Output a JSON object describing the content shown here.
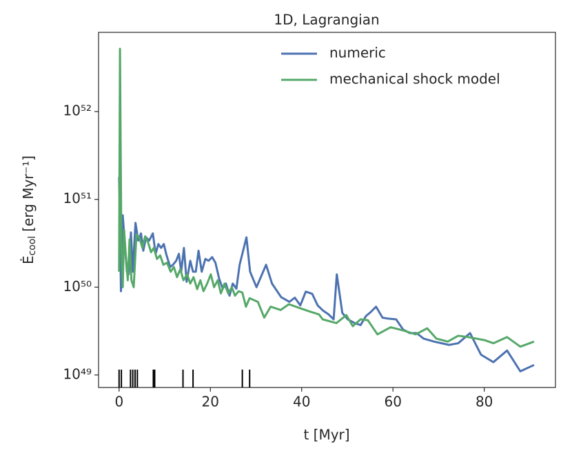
{
  "chart_data": {
    "type": "line",
    "title": "1D, Lagrangian",
    "xlabel": "t [Myr]",
    "ylabel": {
      "symbol": "Ė",
      "sub": "cool",
      "unit": "[erg Myr⁻¹]"
    },
    "xlim": [
      -4.5,
      95.6
    ],
    "xticks": [
      0,
      20,
      40,
      60,
      80
    ],
    "ylim": [
      7.2e+48,
      8e+52
    ],
    "yscale": "log",
    "yticks": [
      {
        "value": 1e+49,
        "label": "10⁴⁹"
      },
      {
        "value": 1e+50,
        "label": "10⁵⁰"
      },
      {
        "value": 1e+51,
        "label": "10⁵¹"
      },
      {
        "value": 1e+52,
        "label": "10⁵²"
      }
    ],
    "legend": "upper right",
    "series": [
      {
        "name": "numeric",
        "color": "#4c72b0",
        "x": [
          0,
          0.15,
          0.4,
          0.8,
          1.2,
          1.7,
          2.1,
          2.6,
          3.0,
          3.6,
          4.2,
          4.8,
          5.3,
          5.9,
          6.6,
          7.4,
          8.0,
          8.6,
          9.2,
          9.8,
          10.4,
          11.2,
          11.8,
          12.5,
          13.1,
          13.6,
          14.2,
          14.8,
          15.6,
          16.2,
          16.8,
          17.4,
          18.1,
          18.9,
          19.6,
          20.4,
          21.1,
          21.9,
          22.7,
          23.4,
          24.2,
          24.9,
          25.7,
          26.4,
          27.9,
          28.7,
          30.1,
          32.2,
          33.5,
          35.5,
          37.3,
          38.5,
          39.7,
          40.9,
          42.3,
          43.5,
          44.7,
          45.9,
          47.0,
          47.7,
          48.9,
          50.1,
          51.6,
          52.9,
          54.1,
          55.1,
          56.3,
          57.7,
          58.7,
          60.7,
          62.2,
          63.7,
          65.2,
          66.7,
          69.0,
          72.3,
          74.3,
          76.9,
          79.3,
          82.0,
          85.0,
          87.9,
          90.9
        ],
        "values": [
          1.8e+51,
          8e+50,
          9e+49,
          6.6e+50,
          3.4e+50,
          1.5e+50,
          1.4e+50,
          4.2e+50,
          1.5e+50,
          5.4e+50,
          3.4e+50,
          4.1e+50,
          2.6e+50,
          3.7e+50,
          3.4e+50,
          4.1e+50,
          2.4e+50,
          3.1e+50,
          2.8e+50,
          3.1e+50,
          2.3e+50,
          1.7e+50,
          1.8e+50,
          2e+50,
          2.4e+50,
          1.5e+50,
          2.8e+50,
          1.15e+50,
          2e+50,
          1.5e+50,
          1.5e+50,
          2.6e+50,
          1.5e+50,
          2.1e+50,
          2e+50,
          2.2e+50,
          1.9e+50,
          1.26e+50,
          9.6e+49,
          1.1e+50,
          8e+49,
          1.1e+50,
          9.6e+49,
          1.8e+50,
          3.7e+50,
          1.5e+50,
          1e+50,
          1.8e+50,
          1.1e+50,
          7.7e+49,
          6.8e+49,
          7.6e+49,
          6.2e+49,
          8.9e+49,
          8.4e+49,
          6.2e+49,
          5.4e+49,
          4.9e+49,
          4.3e+49,
          1.4e+50,
          5.1e+49,
          4.3e+49,
          3.9e+49,
          3.7e+49,
          4.7e+49,
          5.2e+49,
          6e+49,
          4.5e+49,
          4.4e+49,
          4.3e+49,
          3.3e+49,
          3e+49,
          3e+49,
          2.6e+49,
          2.4e+49,
          2.2e+49,
          2.3e+49,
          3e+49,
          1.7e+49,
          1.4e+49,
          1.9e+49,
          1.1e+49,
          1.3e+49
        ]
      },
      {
        "name": "mechanical shock model",
        "color": "#55a868",
        "x": [
          0,
          0.2,
          0.5,
          0.8,
          1.1,
          1.5,
          1.9,
          2.3,
          2.7,
          3.2,
          3.8,
          4.5,
          5.1,
          5.7,
          6.3,
          7.0,
          7.6,
          8.3,
          9.0,
          9.7,
          10.5,
          11.3,
          12.0,
          12.7,
          13.4,
          14.1,
          14.9,
          15.6,
          16.3,
          17.1,
          17.8,
          18.5,
          19.3,
          20.1,
          20.8,
          21.6,
          22.3,
          23.1,
          23.9,
          24.7,
          25.4,
          26.2,
          27.0,
          27.8,
          28.6,
          30.4,
          31.8,
          33.2,
          35.4,
          37.2,
          39.5,
          41.7,
          43.8,
          44.6,
          47.6,
          49.8,
          51.2,
          52.9,
          54.5,
          56.6,
          59.5,
          62.4,
          65.0,
          67.5,
          69.5,
          72.0,
          74.3,
          76.5,
          80.0,
          82.0,
          85.0,
          87.9,
          90.9
        ],
        "values": [
          1.5e+50,
          5.2e+52,
          3e+50,
          1e+50,
          4.5e+50,
          2.2e+50,
          1.2e+50,
          3.5e+50,
          1.2e+50,
          1e+50,
          4e+50,
          3.6e+50,
          2.8e+50,
          3.8e+50,
          3.3e+50,
          2.5e+50,
          2.8e+50,
          2.1e+50,
          2.3e+50,
          1.8e+50,
          1.9e+50,
          1.5e+50,
          1.7e+50,
          1.3e+50,
          1.6e+50,
          1.2e+50,
          1.4e+50,
          1.1e+50,
          1.3e+50,
          9.5e+49,
          1.2e+50,
          9e+49,
          1.1e+50,
          1.4e+50,
          1e+50,
          1.2e+50,
          8.5e+49,
          1.1e+50,
          8.5e+49,
          1e+50,
          8e+49,
          9e+49,
          8.7e+49,
          6e+49,
          7.5e+49,
          6.8e+49,
          4.5e+49,
          6e+49,
          5.5e+49,
          6.4e+49,
          5.8e+49,
          5.3e+49,
          4.9e+49,
          4.3e+49,
          3.9e+49,
          4.8e+49,
          3.6e+49,
          4.3e+49,
          4.2e+49,
          2.9e+49,
          3.5e+49,
          3.2e+49,
          2.9e+49,
          3.4e+49,
          2.6e+49,
          2.4e+49,
          2.8e+49,
          2.7e+49,
          2.5e+49,
          2.3e+49,
          2.7e+49,
          2.1e+49,
          2.4e+49
        ]
      }
    ],
    "rug": {
      "color": "#000000",
      "x": [
        0,
        0.5,
        2.5,
        3.0,
        3.5,
        4.0,
        7.5,
        7.8,
        14.0,
        16.2,
        27.0,
        28.6
      ]
    }
  }
}
